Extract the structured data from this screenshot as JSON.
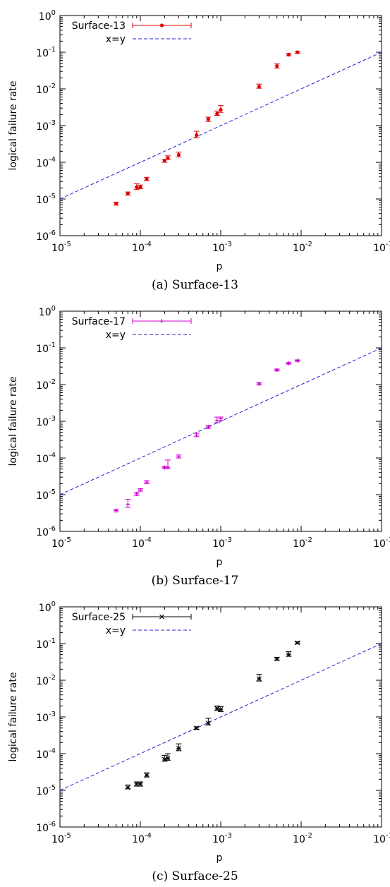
{
  "chart_data": [
    {
      "type": "scatter",
      "caption": "(a) Surface-13",
      "xlabel": "p",
      "ylabel": "logical failure rate",
      "xscale": "log",
      "yscale": "log",
      "xlim": [
        1e-05,
        0.1
      ],
      "ylim": [
        1e-06,
        1
      ],
      "x_tick_labels": [
        "10-5",
        "10-4",
        "10-3",
        "10-2",
        "10-1"
      ],
      "y_tick_labels": [
        "10-6",
        "10-5",
        "10-4",
        "10-3",
        "10-2",
        "10-1",
        "100"
      ],
      "legend_position": "top-left",
      "series": [
        {
          "name": "Surface-13",
          "color": "#e00000",
          "marker": "dot",
          "points": [
            {
              "x": 5e-05,
              "y": 7.5e-06,
              "ylo": 6.8e-06,
              "yhi": 8.2e-06
            },
            {
              "x": 7e-05,
              "y": 1.4e-05,
              "ylo": 1.28e-05,
              "yhi": 1.55e-05
            },
            {
              "x": 9e-05,
              "y": 2.1e-05,
              "ylo": 1.8e-05,
              "yhi": 2.6e-05
            },
            {
              "x": 0.0001,
              "y": 2.1e-05,
              "ylo": 1.9e-05,
              "yhi": 2.4e-05
            },
            {
              "x": 0.00012,
              "y": 3.5e-05,
              "ylo": 3.2e-05,
              "yhi": 3.9e-05
            },
            {
              "x": 0.0002,
              "y": 0.00011,
              "ylo": 0.0001,
              "yhi": 0.00012
            },
            {
              "x": 0.00022,
              "y": 0.00013,
              "ylo": 0.00012,
              "yhi": 0.00015
            },
            {
              "x": 0.0003,
              "y": 0.00016,
              "ylo": 0.00014,
              "yhi": 0.00019
            },
            {
              "x": 0.0005,
              "y": 0.00055,
              "ylo": 0.00047,
              "yhi": 0.0007
            },
            {
              "x": 0.0007,
              "y": 0.0015,
              "ylo": 0.0013,
              "yhi": 0.0017
            },
            {
              "x": 0.0009,
              "y": 0.0021,
              "ylo": 0.0019,
              "yhi": 0.0025
            },
            {
              "x": 0.001,
              "y": 0.0027,
              "ylo": 0.0023,
              "yhi": 0.0035
            },
            {
              "x": 0.003,
              "y": 0.0115,
              "ylo": 0.0104,
              "yhi": 0.0135
            },
            {
              "x": 0.005,
              "y": 0.042,
              "ylo": 0.037,
              "yhi": 0.048
            },
            {
              "x": 0.007,
              "y": 0.086,
              "ylo": 0.08,
              "yhi": 0.092
            },
            {
              "x": 0.009,
              "y": 0.1,
              "ylo": 0.094,
              "yhi": 0.106
            }
          ]
        },
        {
          "name": "x=y",
          "color": "#2020d0",
          "style": "dashed",
          "line": [
            [
              1e-05,
              1e-05
            ],
            [
              0.1,
              0.1
            ]
          ]
        }
      ]
    },
    {
      "type": "scatter",
      "caption": "(b) Surface-17",
      "xlabel": "p",
      "ylabel": "logical failure rate",
      "xscale": "log",
      "yscale": "log",
      "xlim": [
        1e-05,
        0.1
      ],
      "ylim": [
        1e-06,
        1
      ],
      "x_tick_labels": [
        "10-5",
        "10-4",
        "10-3",
        "10-2",
        "10-1"
      ],
      "y_tick_labels": [
        "10-6",
        "10-5",
        "10-4",
        "10-3",
        "10-2",
        "10-1",
        "100"
      ],
      "legend_position": "top-left",
      "series": [
        {
          "name": "Surface-17",
          "color": "#d000d0",
          "marker": "plus",
          "points": [
            {
              "x": 5e-05,
              "y": 3.7e-06,
              "ylo": 3.4e-06,
              "yhi": 4e-06
            },
            {
              "x": 7e-05,
              "y": 5.5e-06,
              "ylo": 4.5e-06,
              "yhi": 7.5e-06
            },
            {
              "x": 9e-05,
              "y": 1.05e-05,
              "ylo": 9.5e-06,
              "yhi": 1.15e-05
            },
            {
              "x": 0.0001,
              "y": 1.35e-05,
              "ylo": 1.25e-05,
              "yhi": 1.45e-05
            },
            {
              "x": 0.00012,
              "y": 2.2e-05,
              "ylo": 2e-05,
              "yhi": 2.4e-05
            },
            {
              "x": 0.0002,
              "y": 5.5e-05,
              "ylo": 5.2e-05,
              "yhi": 5.8e-05
            },
            {
              "x": 0.00022,
              "y": 5.6e-05,
              "ylo": 5.2e-05,
              "yhi": 8.8e-05
            },
            {
              "x": 0.0003,
              "y": 0.00011,
              "ylo": 0.0001,
              "yhi": 0.00012
            },
            {
              "x": 0.0005,
              "y": 0.00042,
              "ylo": 0.00038,
              "yhi": 0.00047
            },
            {
              "x": 0.0007,
              "y": 0.0007,
              "ylo": 0.00064,
              "yhi": 0.00077
            },
            {
              "x": 0.0009,
              "y": 0.00105,
              "ylo": 0.00092,
              "yhi": 0.0013
            },
            {
              "x": 0.001,
              "y": 0.00118,
              "ylo": 0.00105,
              "yhi": 0.0013
            },
            {
              "x": 0.003,
              "y": 0.0105,
              "ylo": 0.0098,
              "yhi": 0.0112
            },
            {
              "x": 0.005,
              "y": 0.025,
              "ylo": 0.0235,
              "yhi": 0.0265
            },
            {
              "x": 0.007,
              "y": 0.038,
              "ylo": 0.036,
              "yhi": 0.04
            },
            {
              "x": 0.009,
              "y": 0.045,
              "ylo": 0.043,
              "yhi": 0.047
            }
          ]
        },
        {
          "name": "x=y",
          "color": "#2020d0",
          "style": "dashed",
          "line": [
            [
              1e-05,
              1e-05
            ],
            [
              0.1,
              0.1
            ]
          ]
        }
      ]
    },
    {
      "type": "scatter",
      "caption": "(c) Surface-25",
      "xlabel": "p",
      "ylabel": "logical failure rate",
      "xscale": "log",
      "yscale": "log",
      "xlim": [
        1e-05,
        0.1
      ],
      "ylim": [
        1e-06,
        1
      ],
      "x_tick_labels": [
        "10-5",
        "10-4",
        "10-3",
        "10-2",
        "10-1"
      ],
      "y_tick_labels": [
        "10-6",
        "10-5",
        "10-4",
        "10-3",
        "10-2",
        "10-1",
        "100"
      ],
      "legend_position": "top-left",
      "series": [
        {
          "name": "Surface-25",
          "color": "#000000",
          "marker": "x",
          "points": [
            {
              "x": 7e-05,
              "y": 1.2e-05,
              "ylo": 1.1e-05,
              "yhi": 1.4e-05
            },
            {
              "x": 9e-05,
              "y": 1.5e-05,
              "ylo": 1.3e-05,
              "yhi": 1.7e-05
            },
            {
              "x": 0.0001,
              "y": 1.5e-05,
              "ylo": 1.3e-05,
              "yhi": 1.7e-05
            },
            {
              "x": 0.00012,
              "y": 2.6e-05,
              "ylo": 2.3e-05,
              "yhi": 3e-05
            },
            {
              "x": 0.0002,
              "y": 7e-05,
              "ylo": 6.2e-05,
              "yhi": 9e-05
            },
            {
              "x": 0.00022,
              "y": 7.5e-05,
              "ylo": 6.6e-05,
              "yhi": 0.0001
            },
            {
              "x": 0.0003,
              "y": 0.00014,
              "ylo": 0.00012,
              "yhi": 0.000185
            },
            {
              "x": 0.0005,
              "y": 0.0005,
              "ylo": 0.00046,
              "yhi": 0.00054
            },
            {
              "x": 0.0007,
              "y": 0.00068,
              "ylo": 0.0006,
              "yhi": 0.00092
            },
            {
              "x": 0.0009,
              "y": 0.0017,
              "ylo": 0.0015,
              "yhi": 0.002
            },
            {
              "x": 0.001,
              "y": 0.0016,
              "ylo": 0.0014,
              "yhi": 0.0019
            },
            {
              "x": 0.003,
              "y": 0.011,
              "ylo": 0.0095,
              "yhi": 0.0145
            },
            {
              "x": 0.005,
              "y": 0.038,
              "ylo": 0.035,
              "yhi": 0.042
            },
            {
              "x": 0.007,
              "y": 0.05,
              "ylo": 0.045,
              "yhi": 0.06
            },
            {
              "x": 0.009,
              "y": 0.105,
              "ylo": 0.098,
              "yhi": 0.113
            }
          ]
        },
        {
          "name": "x=y",
          "color": "#2020d0",
          "style": "dashed",
          "line": [
            [
              1e-05,
              1e-05
            ],
            [
              0.1,
              0.1
            ]
          ]
        }
      ]
    }
  ]
}
